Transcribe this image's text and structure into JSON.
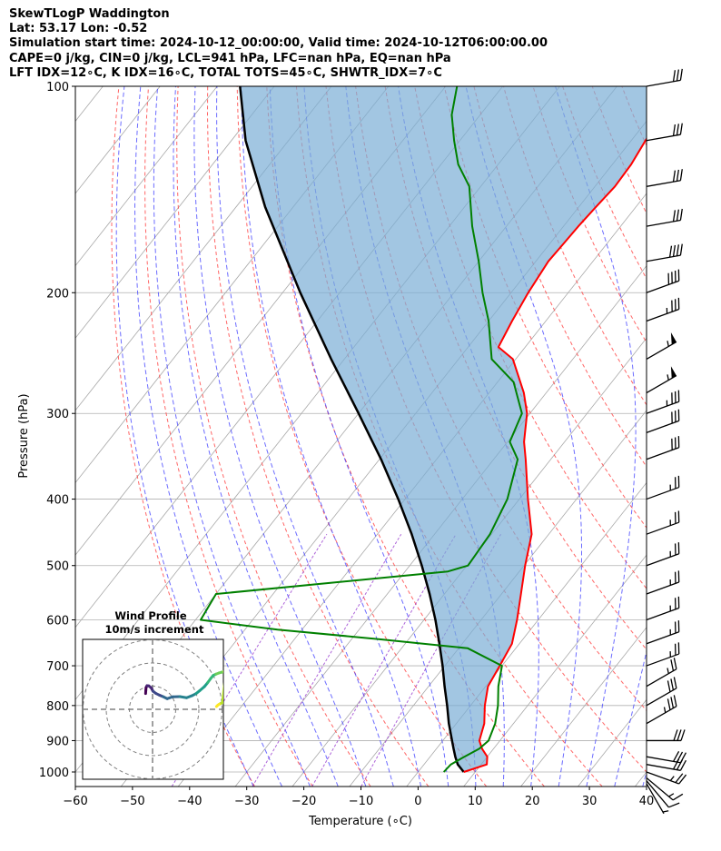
{
  "header": {
    "line1": "SkewTLogP Waddington",
    "line2": "Lat: 53.17   Lon: -0.52",
    "line3": "Simulation start time: 2024-10-12_00:00:00, Valid time: 2024-10-12T06:00:00.00",
    "line4": "CAPE=0 j/kg, CIN=0 j/kg, LCL=941 hPa, LFC=nan hPa, EQ=nan hPa",
    "line5": "LFT IDX=12∘C, K IDX=16∘C, TOTAL TOTS=45∘C, SHWTR_IDX=7∘C"
  },
  "chart_data": {
    "type": "line",
    "xlabel": "Temperature (∘C)",
    "ylabel": "Pressure (hPa)",
    "xlim": [
      -60,
      40
    ],
    "ylim": [
      1050,
      100
    ],
    "y_scale": "log",
    "skew": "skew-T",
    "grid": true,
    "x_ticks": [
      "−60",
      "−50",
      "−40",
      "−30",
      "−20",
      "−10",
      "0",
      "10",
      "20",
      "30",
      "40"
    ],
    "x_tick_values": [
      -60,
      -50,
      -40,
      -30,
      -20,
      -10,
      0,
      10,
      20,
      30,
      40
    ],
    "y_ticks": [
      "100",
      "200",
      "300",
      "400",
      "500",
      "600",
      "700",
      "800",
      "900",
      "1000"
    ],
    "y_tick_values": [
      100,
      200,
      300,
      400,
      500,
      600,
      700,
      800,
      900,
      1000
    ],
    "temperature": {
      "color": "#ff0000",
      "p": [
        1000,
        975,
        950,
        925,
        900,
        850,
        800,
        750,
        700,
        650,
        600,
        550,
        500,
        450,
        400,
        350,
        330,
        300,
        280,
        250,
        240,
        220,
        200,
        180,
        170,
        160,
        150,
        140,
        130,
        120,
        110,
        100
      ],
      "t": [
        8.0,
        11.0,
        10.0,
        8.0,
        6.4,
        4.9,
        2.5,
        0.4,
        -0.4,
        -1.3,
        -3.7,
        -6.6,
        -9.8,
        -13.0,
        -18.5,
        -24.4,
        -27.1,
        -30.5,
        -33.9,
        -40.5,
        -44.7,
        -45.9,
        -47.0,
        -47.8,
        -47.6,
        -47.4,
        -47.0,
        -46.5,
        -46.7,
        -47.5,
        -48.1,
        -49.0
      ]
    },
    "dewpoint": {
      "color": "#008000",
      "p": [
        1000,
        975,
        950,
        925,
        900,
        850,
        800,
        750,
        700,
        660,
        640,
        620,
        600,
        550,
        510,
        500,
        450,
        400,
        350,
        330,
        300,
        270,
        250,
        220,
        200,
        180,
        160,
        140,
        130,
        120,
        110,
        100
      ],
      "t": [
        4.5,
        4.7,
        6.0,
        7.5,
        8.0,
        6.8,
        4.8,
        2.2,
        0.0,
        -8.4,
        -25.3,
        -44.3,
        -59.1,
        -60.0,
        -22.5,
        -19.8,
        -20.3,
        -22.1,
        -25.8,
        -29.6,
        -31.4,
        -37.2,
        -44.2,
        -50.0,
        -55.0,
        -60.0,
        -66.0,
        -72.0,
        -77.0,
        -81.0,
        -85.0,
        -88.0
      ]
    },
    "parcel": {
      "color": "#000000",
      "p": [
        1000,
        975,
        950,
        925,
        900,
        850,
        800,
        750,
        700,
        650,
        600,
        550,
        500,
        450,
        400,
        350,
        300,
        250,
        200,
        150,
        120,
        100
      ],
      "t": [
        8.0,
        5.9,
        4.4,
        3.0,
        1.6,
        -1.3,
        -4.1,
        -7.2,
        -10.4,
        -14.0,
        -18.0,
        -22.6,
        -27.9,
        -34.0,
        -41.2,
        -49.7,
        -60.0,
        -72.3,
        -86.9,
        -104.9,
        -117.5,
        -126.0
      ]
    },
    "wind_barbs": {
      "p": [
        1040,
        1030,
        1020,
        1000,
        975,
        950,
        900,
        850,
        800,
        750,
        700,
        650,
        600,
        550,
        500,
        450,
        400,
        350,
        320,
        300,
        280,
        250,
        220,
        200,
        180,
        160,
        140,
        120,
        100
      ],
      "speed_kt": [
        5,
        10,
        15,
        25,
        30,
        30,
        30,
        35,
        30,
        25,
        25,
        25,
        25,
        25,
        25,
        25,
        25,
        30,
        30,
        35,
        55,
        55,
        35,
        40,
        40,
        30,
        30,
        30,
        30
      ],
      "direction_deg": [
        330,
        320,
        310,
        290,
        280,
        280,
        270,
        240,
        240,
        240,
        250,
        250,
        250,
        250,
        250,
        250,
        250,
        250,
        250,
        250,
        240,
        240,
        250,
        250,
        260,
        260,
        260,
        260,
        260
      ]
    },
    "hodograph": {
      "title": "Wind Profile",
      "subtitle": "10m/s increment",
      "rings_m_s": [
        10,
        20,
        30
      ],
      "u": [
        -3.0,
        -2.9,
        -2.8,
        -2.4,
        -1.6,
        -0.6,
        0.2,
        1.4,
        3.0,
        4.5,
        6.3,
        8.7,
        11.8,
        14.7,
        17.1,
        18.8,
        20.3,
        22.4,
        23.8,
        25.1,
        26.2,
        27.4,
        28.7,
        29.8,
        30.9,
        31.7,
        30.2,
        28.8,
        28.2,
        27.6
      ],
      "v": [
        6.8,
        8.2,
        9.4,
        10.2,
        10.1,
        9.3,
        7.8,
        6.9,
        6.1,
        5.5,
        4.6,
        5.4,
        5.5,
        5.0,
        5.9,
        6.8,
        8.0,
        9.8,
        11.5,
        13.3,
        14.6,
        15.2,
        15.7,
        16.0,
        16.3,
        16.5,
        2.9,
        2.2,
        1.8,
        1.2
      ]
    }
  }
}
